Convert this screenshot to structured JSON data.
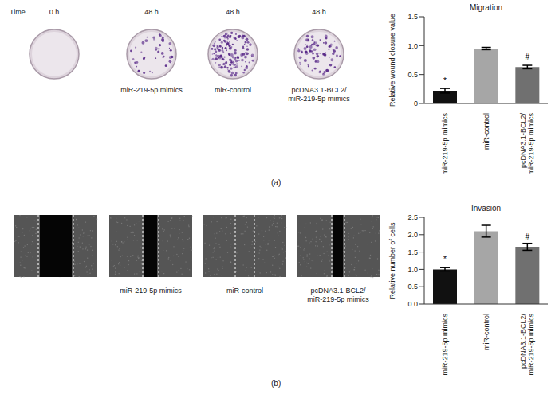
{
  "chart_data": [
    {
      "type": "bar",
      "panel": "(a)",
      "title": "Migration",
      "ylabel": "Relative wound closure value",
      "categories": [
        "miR-219-5p mimics",
        "miR-control",
        "pcDNA3.1-BCL2/miR-219-5p mimics"
      ],
      "values": [
        0.22,
        0.95,
        0.63
      ],
      "errors": [
        0.04,
        0.02,
        0.03
      ],
      "colors": [
        "#111111",
        "#a6a6a6",
        "#707070"
      ],
      "ylim": [
        0,
        1.5
      ],
      "yticks": [
        0,
        0.5,
        {
          "value": 1,
          "label": "1.0"
        },
        1.5
      ],
      "annotations": [
        {
          "index": 0,
          "text": "*"
        },
        {
          "index": 2,
          "text": "#"
        }
      ],
      "time_label": "Time",
      "images": [
        {
          "time": "0 h"
        },
        {
          "time": "48 h",
          "caption": "miR-219-5p mimics"
        },
        {
          "time": "48 h",
          "caption": "miR-control"
        },
        {
          "time": "48 h",
          "caption": "pcDNA3.1-BCL2/miR-219-5p mimics"
        }
      ]
    },
    {
      "type": "bar",
      "panel": "(b)",
      "title": "Invasion",
      "ylabel": "Relative number of cells",
      "categories": [
        "miR-219-5p mimics",
        "miR-control",
        "pcDNA3.1-BCL2/miR-219-5p mimics"
      ],
      "values": [
        1.0,
        2.1,
        1.65
      ],
      "errors": [
        0.05,
        0.17,
        0.1
      ],
      "colors": [
        "#111111",
        "#a6a6a6",
        "#707070"
      ],
      "ylim": [
        0,
        2.5
      ],
      "yticks": [
        {
          "value": 0,
          "label": "0.0"
        },
        0.5,
        {
          "value": 1,
          "label": "1.0"
        },
        1.5,
        {
          "value": 2,
          "label": "2.0"
        },
        2.5
      ],
      "annotations": [
        {
          "index": 0,
          "text": "*"
        },
        {
          "index": 2,
          "text": "#"
        }
      ],
      "images": [
        {},
        {
          "caption": "miR-219-5p mimics"
        },
        {
          "caption": "miR-control"
        },
        {
          "caption": "pcDNA3.1-BCL2/miR-219-5p mimics"
        }
      ]
    }
  ]
}
